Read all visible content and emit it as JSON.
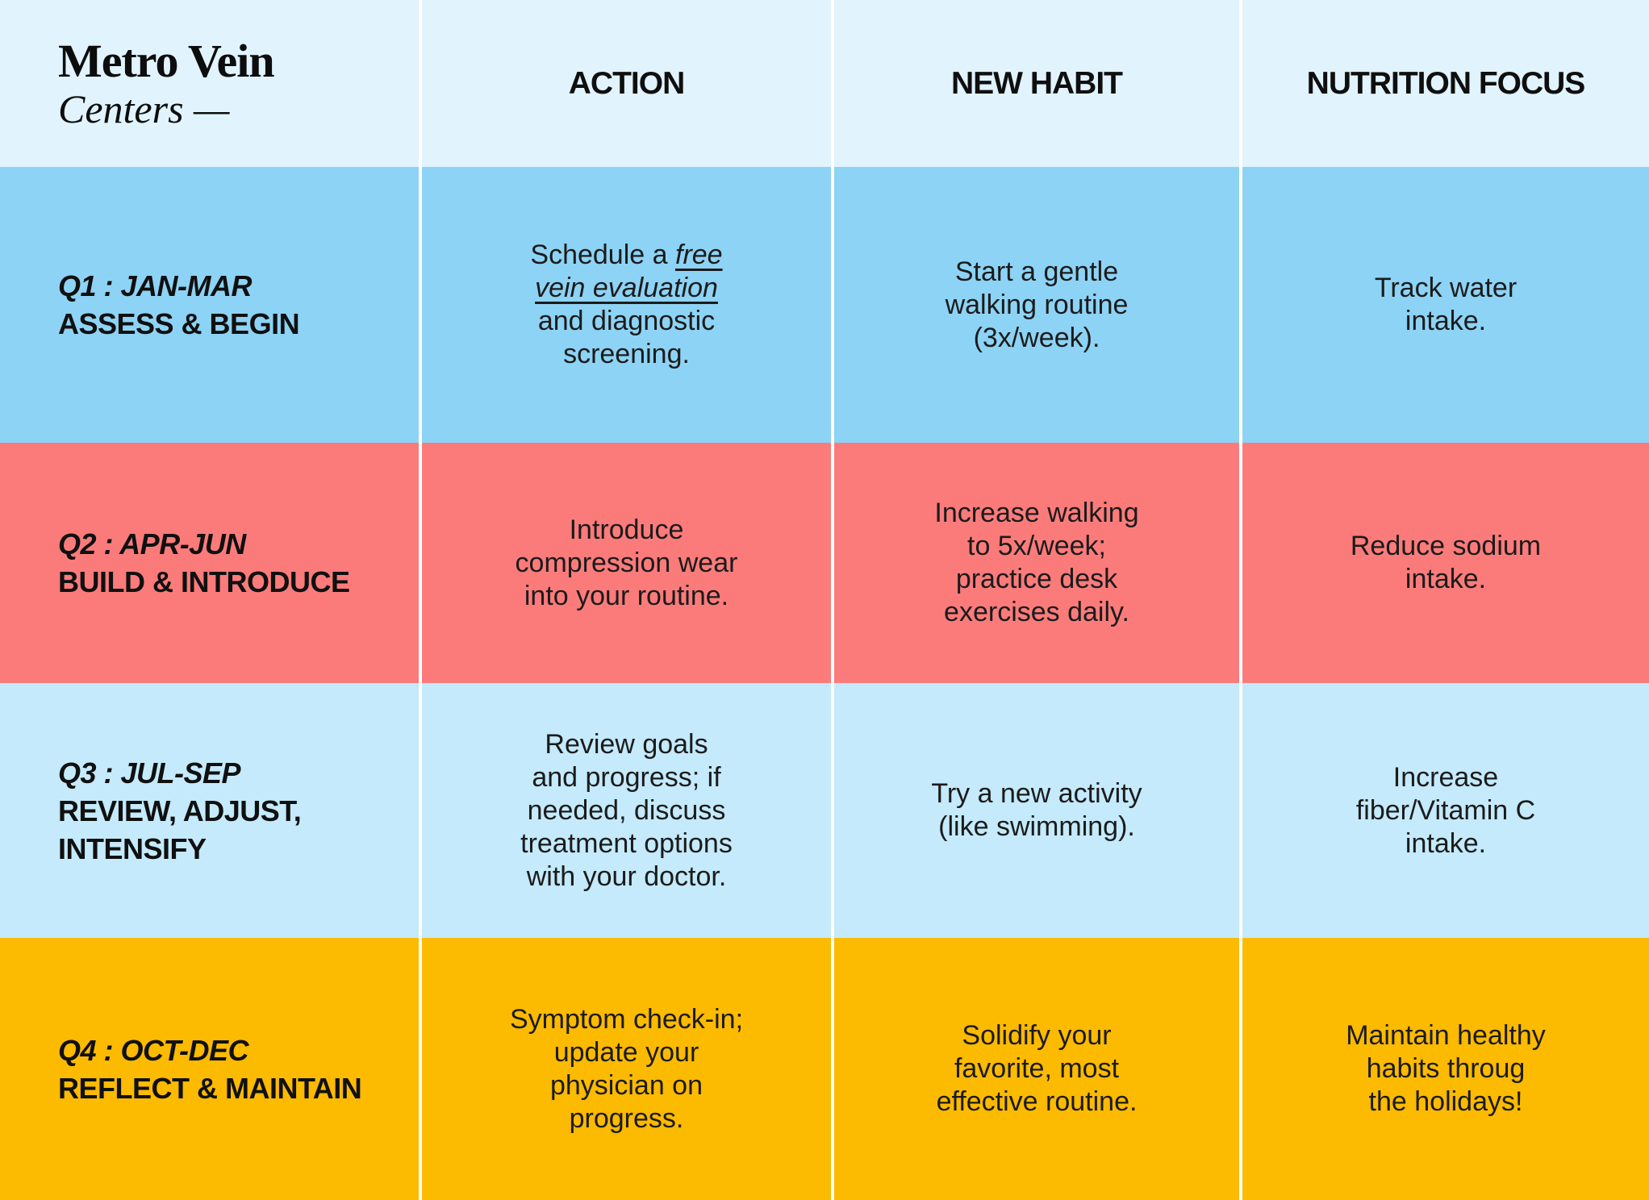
{
  "brand": {
    "line1": "Metro Vein",
    "line2": "Centers —"
  },
  "colors": {
    "page_bg": "#ffffff",
    "divider": "#ffffff",
    "header_bg": "#E1F3FD",
    "text": "#141414",
    "q1_bg": "#8DD3F5",
    "q2_bg": "#FB7B7B",
    "q3_bg": "#C4EAFB",
    "q4_bg": "#FCBA00"
  },
  "columns": [
    {
      "label": "ACTION"
    },
    {
      "label": "NEW HABIT"
    },
    {
      "label": "NUTRITION FOCUS"
    }
  ],
  "rows": [
    {
      "id": "q1",
      "bg_key": "q1_bg",
      "quarter": "Q1 : JAN-MAR",
      "theme_lines": [
        "ASSESS & BEGIN"
      ],
      "action_lines": [
        [
          {
            "t": "Schedule a "
          },
          {
            "t": "free",
            "em": true
          }
        ],
        [
          {
            "t": "vein evaluation",
            "em": true
          }
        ],
        [
          {
            "t": "and diagnostic"
          }
        ],
        [
          {
            "t": "screening."
          }
        ]
      ],
      "habit_lines": [
        [
          {
            "t": "Start a gentle"
          }
        ],
        [
          {
            "t": "walking routine"
          }
        ],
        [
          {
            "t": "(3x/week)."
          }
        ]
      ],
      "nutrition_lines": [
        [
          {
            "t": "Track water"
          }
        ],
        [
          {
            "t": "intake."
          }
        ]
      ]
    },
    {
      "id": "q2",
      "bg_key": "q2_bg",
      "quarter": "Q2 : APR-JUN",
      "theme_lines": [
        "BUILD & INTRODUCE"
      ],
      "action_lines": [
        [
          {
            "t": "Introduce"
          }
        ],
        [
          {
            "t": "compression wear"
          }
        ],
        [
          {
            "t": "into your routine."
          }
        ]
      ],
      "habit_lines": [
        [
          {
            "t": "Increase walking"
          }
        ],
        [
          {
            "t": "to 5x/week;"
          }
        ],
        [
          {
            "t": "practice desk"
          }
        ],
        [
          {
            "t": "exercises daily."
          }
        ]
      ],
      "nutrition_lines": [
        [
          {
            "t": "Reduce sodium"
          }
        ],
        [
          {
            "t": "intake."
          }
        ]
      ]
    },
    {
      "id": "q3",
      "bg_key": "q3_bg",
      "quarter": "Q3 : JUL-SEP",
      "theme_lines": [
        "REVIEW, ADJUST,",
        "INTENSIFY"
      ],
      "action_lines": [
        [
          {
            "t": "Review goals"
          }
        ],
        [
          {
            "t": "and progress; if"
          }
        ],
        [
          {
            "t": "needed, discuss"
          }
        ],
        [
          {
            "t": "treatment options"
          }
        ],
        [
          {
            "t": "with your doctor."
          }
        ]
      ],
      "habit_lines": [
        [
          {
            "t": "Try a new activity"
          }
        ],
        [
          {
            "t": "(like swimming)."
          }
        ]
      ],
      "nutrition_lines": [
        [
          {
            "t": "Increase"
          }
        ],
        [
          {
            "t": "fiber/Vitamin C"
          }
        ],
        [
          {
            "t": "intake."
          }
        ]
      ]
    },
    {
      "id": "q4",
      "bg_key": "q4_bg",
      "quarter": "Q4 : OCT-DEC",
      "theme_lines": [
        "REFLECT & MAINTAIN"
      ],
      "action_lines": [
        [
          {
            "t": "Symptom check-in;"
          }
        ],
        [
          {
            "t": "update your"
          }
        ],
        [
          {
            "t": "physician on"
          }
        ],
        [
          {
            "t": "progress."
          }
        ]
      ],
      "habit_lines": [
        [
          {
            "t": "Solidify your"
          }
        ],
        [
          {
            "t": "favorite, most"
          }
        ],
        [
          {
            "t": "effective routine."
          }
        ]
      ],
      "nutrition_lines": [
        [
          {
            "t": "Maintain healthy"
          }
        ],
        [
          {
            "t": "habits throug"
          }
        ],
        [
          {
            "t": "the holidays!"
          }
        ]
      ]
    }
  ]
}
